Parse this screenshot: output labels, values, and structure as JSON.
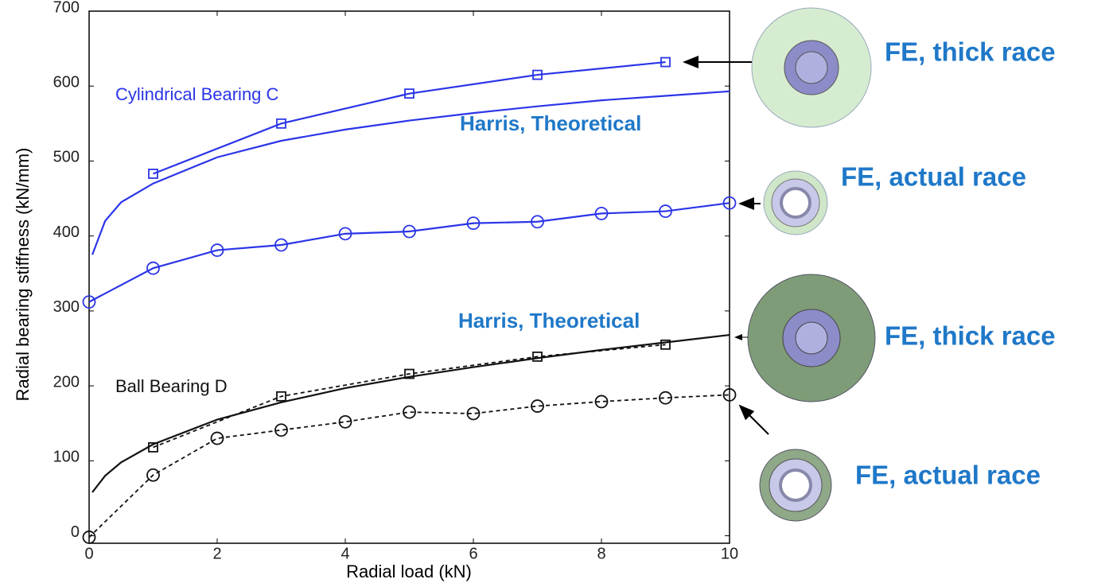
{
  "chart_data": {
    "type": "line",
    "x_label": "Radial load (kN)",
    "y_label": "Radial bearing stiffness (kN/mm)",
    "xlim": [
      0,
      10
    ],
    "ylim": [
      -10,
      700
    ],
    "xticks": [
      0,
      2,
      4,
      6,
      8,
      10
    ],
    "yticks": [
      0,
      100,
      200,
      300,
      400,
      500,
      600,
      700
    ],
    "grid": false,
    "series": [
      {
        "color": "#2b35e8",
        "marker": "square",
        "dash": false,
        "x": [
          1,
          3,
          5,
          7,
          9
        ],
        "values": [
          483,
          550,
          590,
          615,
          632
        ]
      },
      {
        "color": "#2b35e8",
        "marker": "none",
        "dash": false,
        "x": [
          0.05,
          0.25,
          0.5,
          1,
          2,
          3,
          4,
          5,
          6,
          7,
          8,
          9,
          10
        ],
        "values": [
          375,
          420,
          445,
          470,
          505,
          527,
          542,
          554,
          564,
          573,
          581,
          587,
          593
        ]
      },
      {
        "color": "#2b35e8",
        "marker": "circle",
        "dash": false,
        "x": [
          0,
          1,
          2,
          3,
          4,
          5,
          6,
          7,
          8,
          9,
          10
        ],
        "values": [
          312,
          357,
          381,
          388,
          403,
          406,
          417,
          419,
          430,
          433,
          444
        ]
      },
      {
        "color": "#111111",
        "marker": "square",
        "dash": true,
        "x": [
          1,
          3,
          5,
          7,
          9
        ],
        "values": [
          118,
          186,
          216,
          239,
          255
        ]
      },
      {
        "color": "#111111",
        "marker": "none",
        "dash": false,
        "x": [
          0.05,
          0.25,
          0.5,
          1,
          2,
          3,
          4,
          5,
          6,
          7,
          8,
          9,
          10
        ],
        "values": [
          58,
          80,
          98,
          122,
          155,
          178,
          197,
          212,
          225,
          237,
          248,
          258,
          268
        ]
      },
      {
        "color": "#111111",
        "marker": "circle",
        "dash": true,
        "x": [
          0,
          1,
          2,
          3,
          4,
          5,
          6,
          7,
          8,
          9,
          10
        ],
        "values": [
          -2,
          81,
          130,
          141,
          152,
          165,
          163,
          173,
          179,
          184,
          188
        ]
      }
    ],
    "annotations": [
      "Cylindrical Bearing C",
      "Harris, Theoretical",
      "Harris, Theoretical",
      "Ball Bearing D",
      "FE, thick race",
      "FE, actual race",
      "FE, thick race",
      "FE, actual race"
    ]
  }
}
